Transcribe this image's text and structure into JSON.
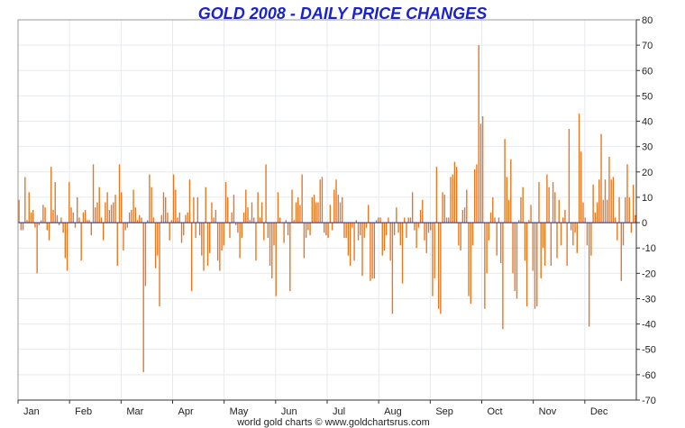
{
  "chart_data": {
    "type": "bar",
    "title": "GOLD 2008 - DAILY PRICE CHANGES",
    "footer": "world gold charts © www.goldchartsrus.com",
    "xlabel": "",
    "ylabel": "",
    "ylim": [
      -70,
      80
    ],
    "y_ticks": [
      80,
      70,
      60,
      50,
      40,
      30,
      20,
      10,
      0,
      -10,
      -20,
      -30,
      -40,
      -50,
      -60,
      -70
    ],
    "y_axis_side": "right",
    "months": [
      "Jan",
      "Feb",
      "Mar",
      "Apr",
      "May",
      "Jun",
      "Jul",
      "Aug",
      "Sep",
      "Oct",
      "Nov",
      "Dec"
    ],
    "grid": true,
    "colors": {
      "bars": "#e8761e",
      "zero_line": "#2020c0",
      "title": "#1a22cc",
      "grid": "#e6e9ee",
      "axis": "#333333"
    },
    "values": [
      9,
      -3,
      -3,
      18,
      1,
      12,
      4,
      5,
      -2,
      -20,
      -1,
      1,
      7,
      6,
      -3,
      -7,
      22,
      5,
      16,
      3,
      -1,
      2,
      -4,
      -14,
      -19,
      16,
      6,
      4,
      -2,
      10,
      2,
      -15,
      4,
      5,
      1,
      1,
      -5,
      23,
      6,
      8,
      14,
      2,
      -7,
      8,
      12,
      5,
      7,
      8,
      11,
      -17,
      23,
      12,
      -11,
      -3,
      -2,
      4,
      5,
      13,
      6,
      1,
      3,
      2,
      -59,
      -25,
      1,
      19,
      14,
      2,
      -18,
      -13,
      -33,
      3,
      12,
      10,
      4,
      -7,
      1,
      19,
      13,
      2,
      4,
      -8,
      -5,
      3,
      4,
      17,
      -27,
      10,
      -6,
      10,
      -5,
      -13,
      -19,
      14,
      -17,
      -12,
      8,
      2,
      5,
      -15,
      -19,
      -11,
      -9,
      16,
      10,
      -6,
      4,
      11,
      -1,
      -4,
      -14,
      -6,
      4,
      13,
      6,
      1,
      8,
      2,
      -15,
      12,
      2,
      8,
      -7,
      23,
      -6,
      -17,
      -22,
      -9,
      -29,
      12,
      2,
      0,
      -8,
      1,
      -5,
      -27,
      13,
      1,
      8,
      10,
      7,
      19,
      -14,
      -6,
      -3,
      -5,
      10,
      11,
      8,
      8,
      17,
      18,
      -4,
      -5,
      -6,
      7,
      -3,
      13,
      17,
      11,
      8,
      10,
      -6,
      -6,
      -13,
      -17,
      -2,
      -15,
      1,
      -7,
      -5,
      -21,
      -6,
      -2,
      7,
      -23,
      -22,
      -22,
      1,
      2,
      2,
      -13,
      -11,
      -5,
      2,
      -15,
      -36,
      -5,
      6,
      -4,
      -9,
      -24,
      2,
      -6,
      2,
      2,
      12,
      -3,
      -10,
      -2,
      5,
      9,
      -7,
      -12,
      -4,
      -3,
      -29,
      -22,
      22,
      -34,
      -36,
      12,
      11,
      2,
      2,
      18,
      19,
      24,
      22,
      -9,
      -11,
      5,
      6,
      13,
      -29,
      -32,
      -9,
      21,
      23,
      70,
      39,
      42,
      -34,
      -20,
      -7,
      4,
      10,
      2,
      -13,
      2,
      -16,
      -42,
      33,
      18,
      9,
      25,
      -20,
      -27,
      -30,
      1,
      10,
      14,
      -15,
      -33,
      1,
      7,
      -19,
      -34,
      -33,
      16,
      -22,
      -10,
      -17,
      19,
      14,
      -17,
      16,
      12,
      -14,
      9,
      -9,
      2,
      5,
      -17,
      37,
      -3,
      -9,
      -4,
      -12,
      43,
      28,
      8,
      2,
      -9,
      -41,
      -13,
      15,
      4,
      8,
      17,
      35,
      9,
      17,
      9,
      26,
      17,
      18,
      2,
      -7,
      10,
      -23,
      -9,
      10,
      23,
      10,
      -4,
      15,
      3
    ]
  }
}
